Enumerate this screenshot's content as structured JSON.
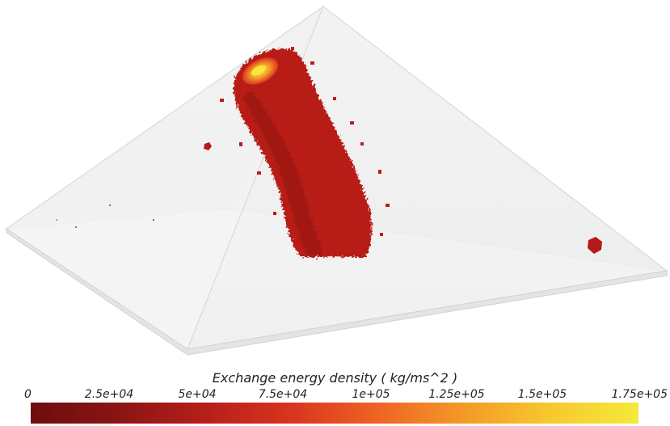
{
  "colorbar": {
    "title": "Exchange energy density ( kg/ms^2 )",
    "ticks": [
      "0",
      "2.5e+04",
      "5e+04",
      "7.5e+04",
      "1e+05",
      "1.25e+05",
      "1.5e+05",
      "1.75e+05"
    ],
    "range": [
      0,
      175000
    ],
    "colors": [
      "#6e0d0d",
      "#8a1414",
      "#b51f1a",
      "#d9341f",
      "#ee6424",
      "#f49a27",
      "#f7c92e",
      "#f5ea3a"
    ]
  },
  "scene": {
    "surface_color": "#ececec",
    "edge_color": "#d8d8d8",
    "isosurface_color": "#c01a1a"
  }
}
